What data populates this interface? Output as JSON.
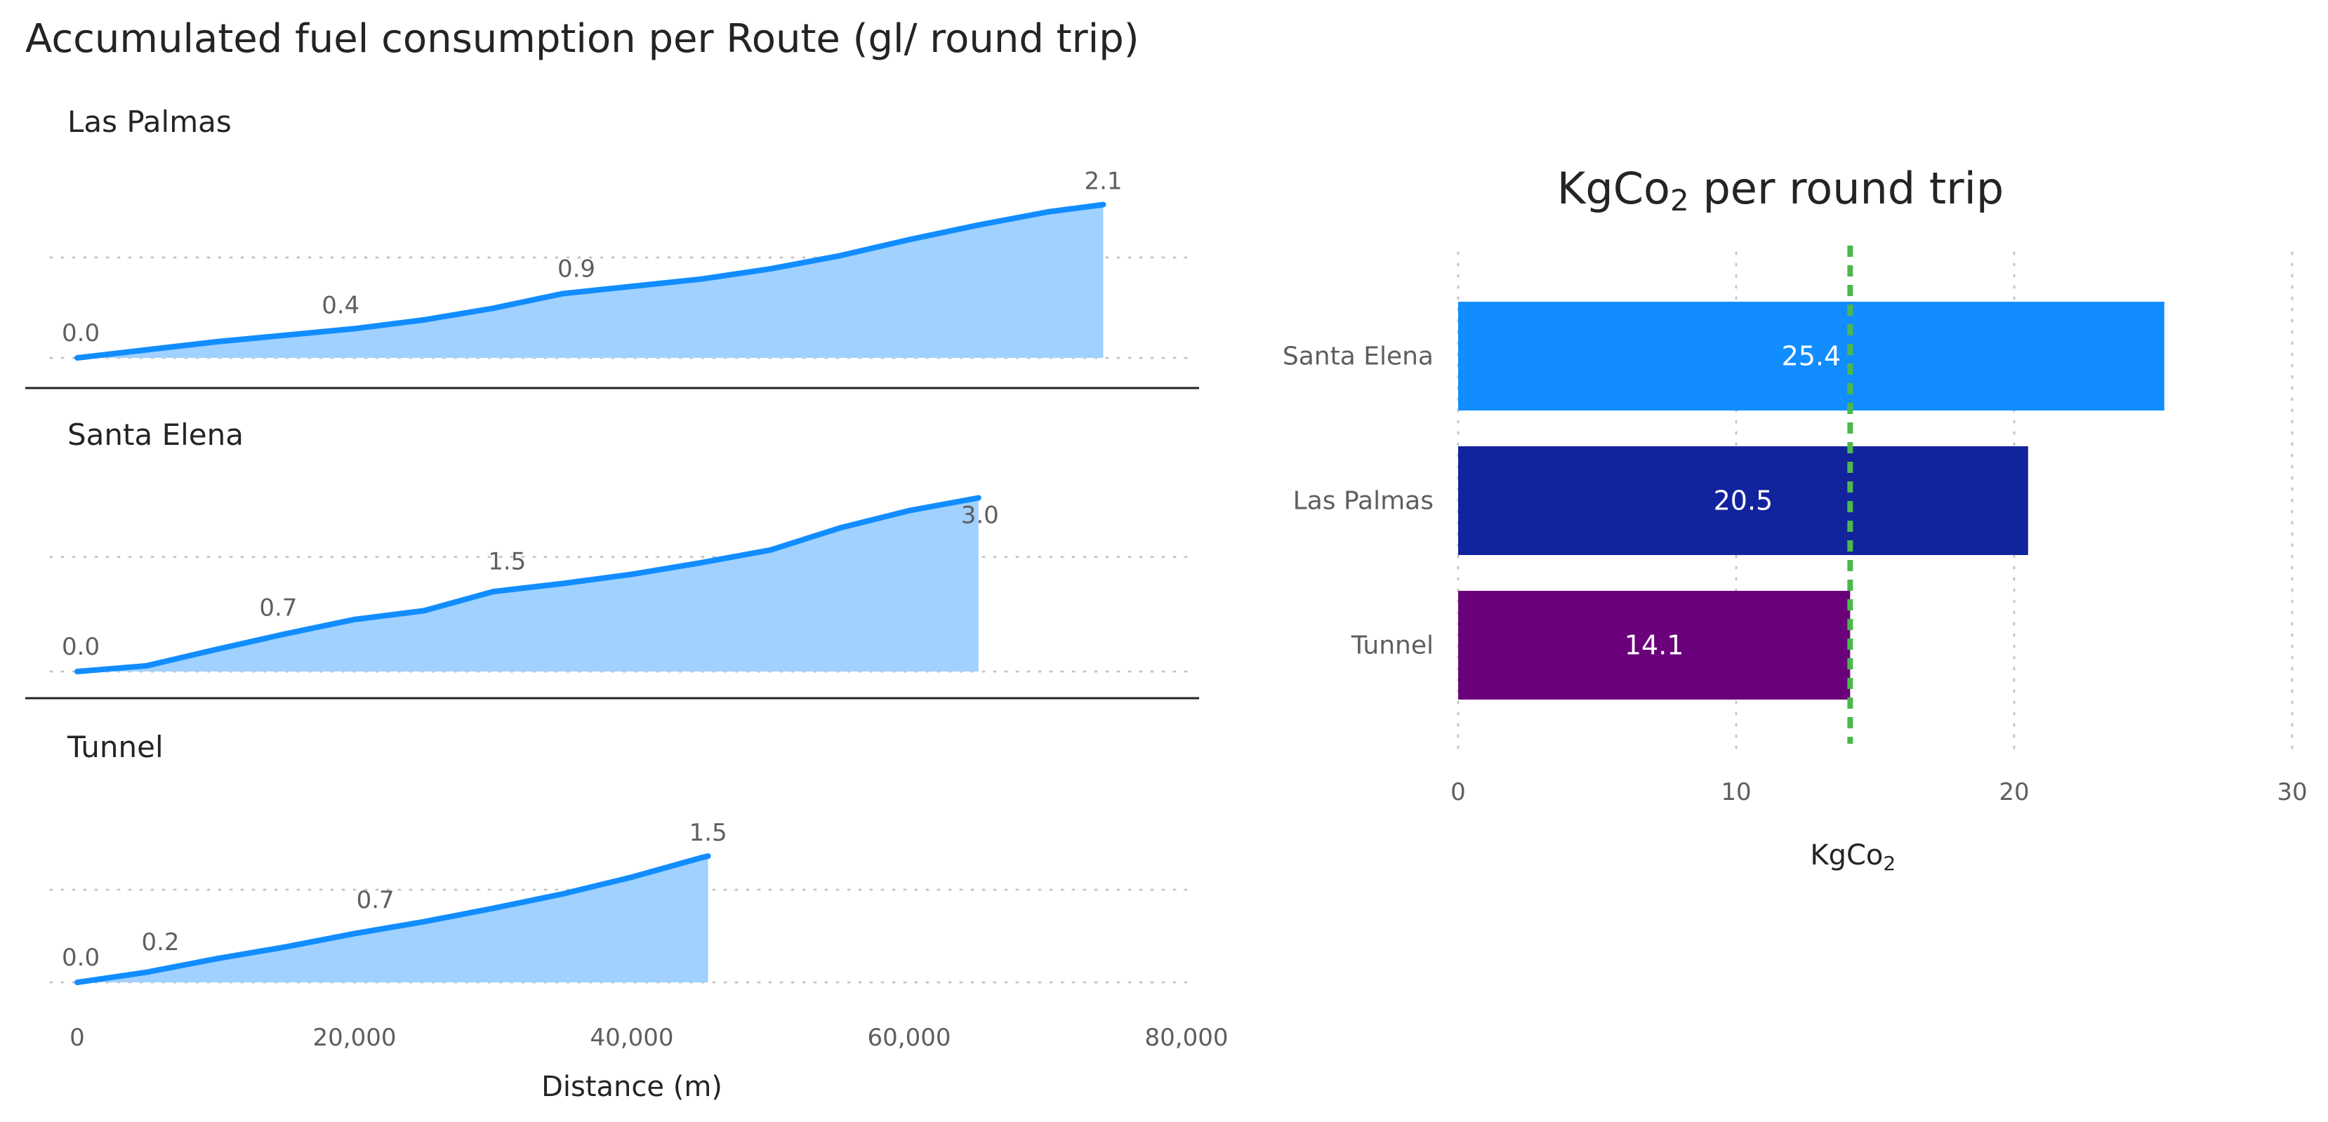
{
  "chart_data": [
    {
      "type": "area",
      "title": "Accumulated fuel consumption per Route (gl/ round trip)",
      "xlabel": "Distance (m)",
      "xlim": [
        0,
        80000
      ],
      "x_ticks": [
        0,
        20000,
        40000,
        60000,
        80000
      ],
      "x_tick_labels": [
        "0",
        "20,000",
        "40,000",
        "60,000",
        "80,000"
      ],
      "colors": {
        "line": "#118DFF",
        "fill": "#A0D1FF"
      },
      "panels": [
        {
          "name": "Las Palmas",
          "ylim": [
            0,
            2.5
          ],
          "points": [
            {
              "x": 0,
              "y": 0.0
            },
            {
              "x": 10000,
              "y": 0.22
            },
            {
              "x": 20000,
              "y": 0.4
            },
            {
              "x": 25000,
              "y": 0.52
            },
            {
              "x": 30000,
              "y": 0.68
            },
            {
              "x": 35000,
              "y": 0.88
            },
            {
              "x": 40000,
              "y": 0.98
            },
            {
              "x": 45000,
              "y": 1.08
            },
            {
              "x": 50000,
              "y": 1.22
            },
            {
              "x": 55000,
              "y": 1.4
            },
            {
              "x": 60000,
              "y": 1.62
            },
            {
              "x": 65000,
              "y": 1.82
            },
            {
              "x": 70000,
              "y": 2.0
            },
            {
              "x": 74000,
              "y": 2.1
            }
          ],
          "labels": [
            {
              "x": 0,
              "y": 0.0,
              "text": "0.0"
            },
            {
              "x": 19000,
              "y": 0.4,
              "text": "0.4"
            },
            {
              "x": 36000,
              "y": 0.9,
              "text": "0.9"
            },
            {
              "x": 74000,
              "y": 2.1,
              "text": "2.1"
            }
          ]
        },
        {
          "name": "Santa Elena",
          "ylim": [
            0,
            3.6
          ],
          "points": [
            {
              "x": 0,
              "y": 0.0
            },
            {
              "x": 5000,
              "y": 0.1
            },
            {
              "x": 10000,
              "y": 0.38
            },
            {
              "x": 15000,
              "y": 0.65
            },
            {
              "x": 20000,
              "y": 0.9
            },
            {
              "x": 25000,
              "y": 1.05
            },
            {
              "x": 30000,
              "y": 1.38
            },
            {
              "x": 35000,
              "y": 1.52
            },
            {
              "x": 40000,
              "y": 1.68
            },
            {
              "x": 45000,
              "y": 1.88
            },
            {
              "x": 50000,
              "y": 2.1
            },
            {
              "x": 55000,
              "y": 2.48
            },
            {
              "x": 60000,
              "y": 2.78
            },
            {
              "x": 65000,
              "y": 3.0
            }
          ],
          "labels": [
            {
              "x": 0,
              "y": 0.0,
              "text": "0.0"
            },
            {
              "x": 14500,
              "y": 0.7,
              "text": "0.7"
            },
            {
              "x": 31000,
              "y": 1.5,
              "text": "1.5"
            },
            {
              "x": 65000,
              "y": 3.0,
              "text": "3.0"
            }
          ]
        },
        {
          "name": "Tunnel",
          "ylim": [
            0,
            2.0
          ],
          "points": [
            {
              "x": 0,
              "y": 0.0
            },
            {
              "x": 5000,
              "y": 0.12
            },
            {
              "x": 10000,
              "y": 0.28
            },
            {
              "x": 15000,
              "y": 0.42
            },
            {
              "x": 20000,
              "y": 0.58
            },
            {
              "x": 25000,
              "y": 0.72
            },
            {
              "x": 30000,
              "y": 0.88
            },
            {
              "x": 35000,
              "y": 1.05
            },
            {
              "x": 40000,
              "y": 1.25
            },
            {
              "x": 45000,
              "y": 1.48
            },
            {
              "x": 45500,
              "y": 1.5
            }
          ],
          "labels": [
            {
              "x": 0,
              "y": 0.0,
              "text": "0.0"
            },
            {
              "x": 6000,
              "y": 0.2,
              "text": "0.2"
            },
            {
              "x": 21500,
              "y": 0.7,
              "text": "0.7"
            },
            {
              "x": 45500,
              "y": 1.5,
              "text": "1.5"
            }
          ]
        }
      ]
    },
    {
      "type": "bar",
      "orientation": "horizontal",
      "title_main": "KgCo",
      "title_sub": "2",
      "title_rest": " per round trip",
      "xlabel_main": "KgCo",
      "xlabel_sub": "2",
      "categories": [
        "Santa Elena",
        "Las Palmas",
        "Tunnel"
      ],
      "values": [
        25.4,
        20.5,
        14.1
      ],
      "value_labels": [
        "25.4",
        "20.5",
        "14.1"
      ],
      "bar_colors": [
        "#118DFF",
        "#12239E",
        "#6B007B"
      ],
      "xlim": [
        0,
        30
      ],
      "x_ticks": [
        0,
        10,
        20,
        30
      ],
      "x_tick_labels": [
        "0",
        "10",
        "20",
        "30"
      ],
      "reference_line": {
        "value": 14.1,
        "color": "#4CB84C",
        "style": "dashed"
      },
      "grid": true
    }
  ]
}
